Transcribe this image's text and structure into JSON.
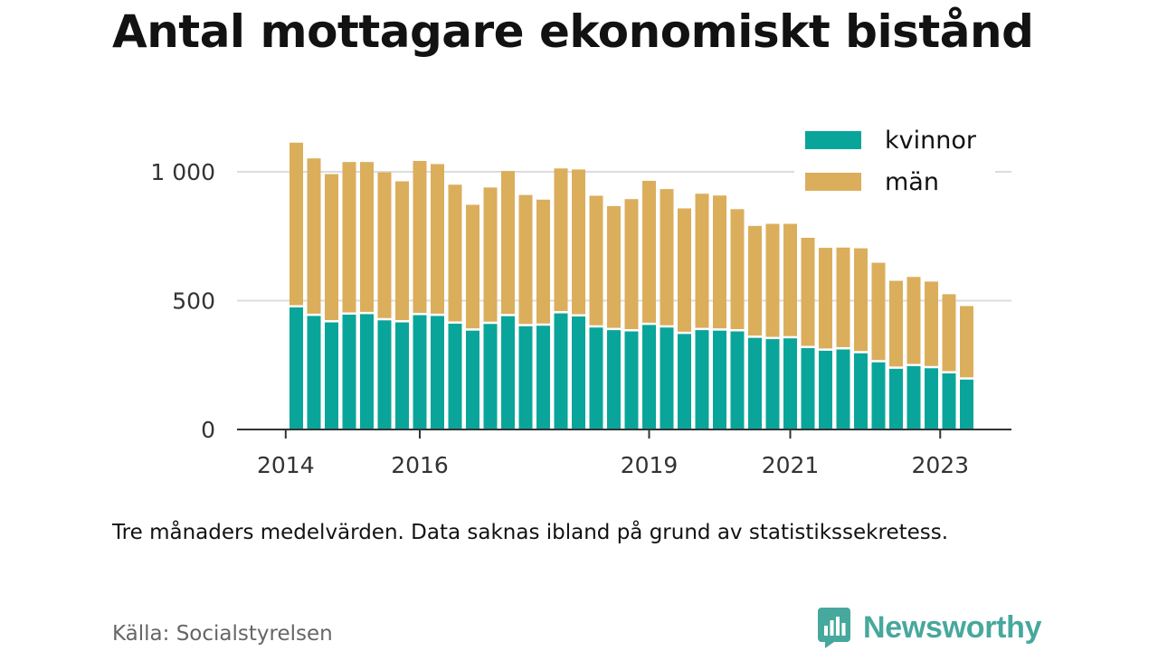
{
  "title": "Antal mottagare ekonomiskt bistånd",
  "note": "Tre månaders medelvärden. Data saknas ibland på grund av statistikssekretess.",
  "source": "Källa: Socialstyrelsen",
  "brand": {
    "name": "Newsworthy",
    "color": "#47a89d"
  },
  "chart_data": {
    "type": "bar",
    "stacked": true,
    "ylim": [
      0,
      1000
    ],
    "ytick_values": [
      0,
      500,
      1000
    ],
    "ytick_labels": [
      "0",
      "500",
      "1 000"
    ],
    "xtick_labels": [
      {
        "label": "2014",
        "bar_index": -0.6
      },
      {
        "label": "2016",
        "bar_index": 7
      },
      {
        "label": "2019",
        "bar_index": 20
      },
      {
        "label": "2021",
        "bar_index": 28
      },
      {
        "label": "2023",
        "bar_index": 36.5
      }
    ],
    "grid": true,
    "legend_position": "top-right",
    "series": [
      {
        "name": "kvinnor",
        "color": "#0aa59a",
        "values": [
          478,
          445,
          420,
          450,
          452,
          428,
          420,
          448,
          445,
          415,
          388,
          414,
          444,
          405,
          407,
          455,
          443,
          400,
          390,
          385,
          410,
          400,
          375,
          390,
          388,
          385,
          360,
          355,
          358,
          320,
          310,
          315,
          300,
          265,
          240,
          250,
          242,
          222,
          198
        ]
      },
      {
        "name": "män",
        "color": "#dbae5c",
        "values": [
          635,
          607,
          571,
          588,
          586,
          570,
          543,
          594,
          585,
          535,
          484,
          525,
          559,
          505,
          485,
          558,
          566,
          507,
          477,
          509,
          555,
          533,
          483,
          525,
          520,
          470,
          430,
          443,
          440,
          424,
          395,
          391,
          403,
          382,
          337,
          342,
          332,
          303,
          281
        ]
      }
    ]
  }
}
